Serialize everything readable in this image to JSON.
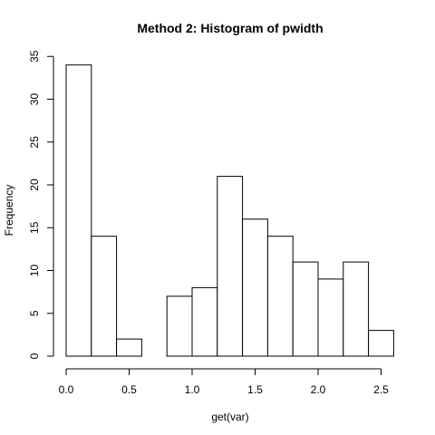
{
  "chart_data": {
    "type": "bar",
    "title": "Method 2: Histogram of pwidth",
    "xlabel": "get(var)",
    "ylabel": "Frequency",
    "bins": [
      {
        "start": 0.0,
        "end": 0.2,
        "count": 34
      },
      {
        "start": 0.2,
        "end": 0.4,
        "count": 14
      },
      {
        "start": 0.4,
        "end": 0.6,
        "count": 2
      },
      {
        "start": 0.6,
        "end": 0.8,
        "count": 0
      },
      {
        "start": 0.8,
        "end": 1.0,
        "count": 7
      },
      {
        "start": 1.0,
        "end": 1.2,
        "count": 8
      },
      {
        "start": 1.2,
        "end": 1.4,
        "count": 21
      },
      {
        "start": 1.4,
        "end": 1.6,
        "count": 16
      },
      {
        "start": 1.6,
        "end": 1.8,
        "count": 14
      },
      {
        "start": 1.8,
        "end": 2.0,
        "count": 11
      },
      {
        "start": 2.0,
        "end": 2.2,
        "count": 9
      },
      {
        "start": 2.2,
        "end": 2.4,
        "count": 11
      },
      {
        "start": 2.4,
        "end": 2.6,
        "count": 3
      }
    ],
    "xlim": [
      0.0,
      2.6
    ],
    "ylim": [
      0,
      35
    ],
    "x_ticks": [
      {
        "value": 0.0,
        "label": "0.0"
      },
      {
        "value": 0.5,
        "label": "0.5"
      },
      {
        "value": 1.0,
        "label": "1.0"
      },
      {
        "value": 1.5,
        "label": "1.5"
      },
      {
        "value": 2.0,
        "label": "2.0"
      },
      {
        "value": 2.5,
        "label": "2.5"
      }
    ],
    "y_ticks": [
      {
        "value": 0,
        "label": "0"
      },
      {
        "value": 5,
        "label": "5"
      },
      {
        "value": 10,
        "label": "10"
      },
      {
        "value": 15,
        "label": "15"
      },
      {
        "value": 20,
        "label": "20"
      },
      {
        "value": 25,
        "label": "25"
      },
      {
        "value": 30,
        "label": "30"
      },
      {
        "value": 35,
        "label": "35"
      }
    ],
    "grid": false,
    "colors": {
      "bar_fill": "#ffffff",
      "bar_stroke": "#000000"
    }
  }
}
